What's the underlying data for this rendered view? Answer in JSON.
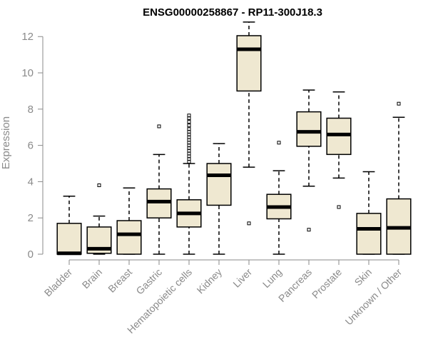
{
  "chart_data": {
    "type": "boxplot",
    "title": "ENSG00000258867 - RP11-300J18.3",
    "xlabel": "",
    "ylabel": "Expression",
    "ylim": [
      0,
      12.6
    ],
    "yticks": [
      0,
      2,
      4,
      6,
      8,
      10,
      12
    ],
    "box_color": "#efe8d1",
    "categories": [
      "Bladder",
      "Brain",
      "Breast",
      "Gastric",
      "Hematopoietic cells",
      "Kidney",
      "Liver",
      "Lung",
      "Pancreas",
      "Prostate",
      "Skin",
      "Unknown / Other"
    ],
    "boxes": [
      {
        "low": 0,
        "q1": 0,
        "median": 0.05,
        "q3": 1.7,
        "high": 3.2,
        "outliers": []
      },
      {
        "low": 0,
        "q1": 0.05,
        "median": 0.3,
        "q3": 1.5,
        "high": 2.1,
        "outliers": [
          3.8
        ]
      },
      {
        "low": 0,
        "q1": 0,
        "median": 1.1,
        "q3": 1.85,
        "high": 3.65,
        "outliers": []
      },
      {
        "low": 0,
        "q1": 2.0,
        "median": 2.9,
        "q3": 3.6,
        "high": 5.5,
        "outliers": [
          7.05
        ]
      },
      {
        "low": 0,
        "q1": 1.5,
        "median": 2.25,
        "q3": 3.0,
        "high": 5.0,
        "outliers": [
          5.1,
          5.25,
          5.4,
          5.55,
          5.7,
          5.85,
          6.0,
          6.15,
          6.3,
          6.45,
          6.6,
          6.75,
          6.9,
          7.1,
          7.3,
          7.5,
          7.65
        ]
      },
      {
        "low": 0,
        "q1": 2.7,
        "median": 4.35,
        "q3": 5.0,
        "high": 6.1,
        "outliers": []
      },
      {
        "low": 4.8,
        "q1": 9.0,
        "median": 11.3,
        "q3": 12.05,
        "high": 12.8,
        "outliers": [
          1.7
        ]
      },
      {
        "low": 0,
        "q1": 1.95,
        "median": 2.6,
        "q3": 3.3,
        "high": 4.6,
        "outliers": [
          6.15
        ]
      },
      {
        "low": 3.75,
        "q1": 5.95,
        "median": 6.75,
        "q3": 7.85,
        "high": 9.05,
        "outliers": [
          1.35
        ]
      },
      {
        "low": 4.2,
        "q1": 5.5,
        "median": 6.6,
        "q3": 7.5,
        "high": 8.95,
        "outliers": [
          2.6
        ]
      },
      {
        "low": 0,
        "q1": 0,
        "median": 1.4,
        "q3": 2.25,
        "high": 4.55,
        "outliers": []
      },
      {
        "low": 0,
        "q1": 0,
        "median": 1.45,
        "q3": 3.05,
        "high": 7.55,
        "outliers": [
          8.3
        ]
      }
    ]
  }
}
